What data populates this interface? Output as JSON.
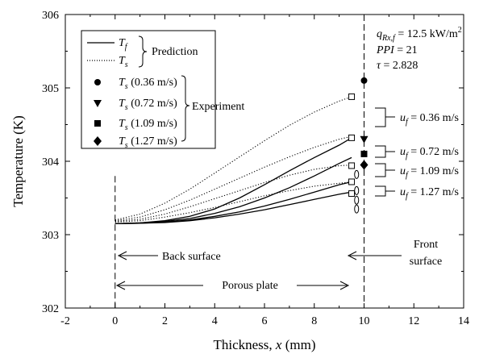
{
  "chart_data": {
    "type": "line",
    "xlabel_main": "Thickness, ",
    "xlabel_var": "x",
    "xlabel_unit": " (mm)",
    "ylabel": "Temperature (K)",
    "xlim": [
      -2,
      14
    ],
    "ylim": [
      302,
      306
    ],
    "xticks": [
      "-2",
      "0",
      "2",
      "4",
      "6",
      "8",
      "10",
      "12",
      "14"
    ],
    "yticks": [
      "302",
      "303",
      "304",
      "305",
      "306"
    ],
    "grid": false,
    "legend": {
      "placement": "top-left",
      "line_entries": [
        {
          "symbol": "T",
          "sub": "f",
          "style": "solid"
        },
        {
          "symbol": "T",
          "sub": "s",
          "style": "dotted"
        }
      ],
      "line_group_label": "Prediction",
      "marker_entries": [
        {
          "symbol": "T",
          "sub": "s",
          "suffix": " (0.36 m/s)",
          "marker": "circle"
        },
        {
          "symbol": "T",
          "sub": "s",
          "suffix": " (0.72 m/s)",
          "marker": "triangle-down"
        },
        {
          "symbol": "T",
          "sub": "s",
          "suffix": " (1.09 m/s)",
          "marker": "square"
        },
        {
          "symbol": "T",
          "sub": "s",
          "suffix": " (1.27 m/s)",
          "marker": "diamond"
        }
      ],
      "marker_group_label": "Experiment"
    },
    "params": {
      "q_sym": "q",
      "q_sub": "Rx,f",
      "q_val": " = 12.5 kW/m",
      "q_sup": "2",
      "ppi": "PPI",
      "ppi_val": " = 21",
      "tau": "τ",
      "tau_val": " = 2.828"
    },
    "velocity_labels": [
      {
        "sym": "u",
        "sub": "f",
        "text": " = 0.36 m/s"
      },
      {
        "sym": "u",
        "sub": "f",
        "text": " = 0.72 m/s"
      },
      {
        "sym": "u",
        "sub": "f",
        "text": " = 1.09 m/s"
      },
      {
        "sym": "u",
        "sub": "f",
        "text": " = 1.27 m/s"
      }
    ],
    "annotations": {
      "back_surface": "Back surface",
      "front_surface_1": "Front",
      "front_surface_2": "surface",
      "porous_plate": "Porous plate"
    },
    "vertical_lines_x": [
      0,
      10
    ],
    "series": [
      {
        "kind": "Tf",
        "velocity": 0.36,
        "style": "solid",
        "x": [
          0,
          1,
          2,
          3,
          4,
          5,
          6,
          7,
          8,
          9,
          9.5
        ],
        "y": [
          303.15,
          303.16,
          303.19,
          303.25,
          303.35,
          303.5,
          303.68,
          303.87,
          304.05,
          304.22,
          304.32
        ]
      },
      {
        "kind": "Ts",
        "velocity": 0.36,
        "style": "dotted",
        "x": [
          0,
          1,
          2,
          3,
          4,
          5,
          6,
          7,
          8,
          9,
          9.5
        ],
        "y": [
          303.2,
          303.28,
          303.43,
          303.62,
          303.84,
          304.06,
          304.28,
          304.49,
          304.67,
          304.82,
          304.88
        ]
      },
      {
        "kind": "Tf",
        "velocity": 0.72,
        "style": "solid",
        "x": [
          0,
          1,
          2,
          3,
          4,
          5,
          6,
          7,
          8,
          9,
          9.5
        ],
        "y": [
          303.15,
          303.16,
          303.18,
          303.22,
          303.29,
          303.38,
          303.5,
          303.64,
          303.8,
          303.97,
          304.05
        ]
      },
      {
        "kind": "Ts",
        "velocity": 0.72,
        "style": "dotted",
        "x": [
          0,
          1,
          2,
          3,
          4,
          5,
          6,
          7,
          8,
          9,
          9.5
        ],
        "y": [
          303.19,
          303.24,
          303.34,
          303.47,
          303.62,
          303.77,
          303.92,
          304.06,
          304.19,
          304.3,
          304.34
        ]
      },
      {
        "kind": "Tf",
        "velocity": 1.09,
        "style": "solid",
        "x": [
          0,
          1,
          2,
          3,
          4,
          5,
          6,
          7,
          8,
          9,
          9.5
        ],
        "y": [
          303.15,
          303.155,
          303.17,
          303.2,
          303.25,
          303.31,
          303.39,
          303.48,
          303.58,
          303.68,
          303.72
        ]
      },
      {
        "kind": "Ts",
        "velocity": 1.09,
        "style": "dotted",
        "x": [
          0,
          1,
          2,
          3,
          4,
          5,
          6,
          7,
          8,
          9,
          9.5
        ],
        "y": [
          303.18,
          303.21,
          303.28,
          303.38,
          303.49,
          303.6,
          303.71,
          303.81,
          303.89,
          303.94,
          303.95
        ]
      },
      {
        "kind": "Tf",
        "velocity": 1.27,
        "style": "solid",
        "x": [
          0,
          1,
          2,
          3,
          4,
          5,
          6,
          7,
          8,
          9,
          9.5
        ],
        "y": [
          303.15,
          303.155,
          303.165,
          303.19,
          303.23,
          303.28,
          303.34,
          303.41,
          303.48,
          303.55,
          303.58
        ]
      },
      {
        "kind": "Ts",
        "velocity": 1.27,
        "style": "dotted",
        "x": [
          0,
          1,
          2,
          3,
          4,
          5,
          6,
          7,
          8,
          9,
          9.5
        ],
        "y": [
          303.17,
          303.19,
          303.24,
          303.3,
          303.37,
          303.45,
          303.53,
          303.6,
          303.66,
          303.7,
          303.72
        ]
      }
    ],
    "open_squares": [
      {
        "x": 9.5,
        "y": 304.88
      },
      {
        "x": 9.5,
        "y": 304.32
      },
      {
        "x": 9.5,
        "y": 303.94
      },
      {
        "x": 9.5,
        "y": 303.72
      },
      {
        "x": 9.5,
        "y": 303.56
      }
    ],
    "experiment_points": [
      {
        "velocity": 0.36,
        "marker": "circle",
        "x": 10,
        "y": 305.1
      },
      {
        "velocity": 0.72,
        "marker": "triangle-down",
        "x": 10,
        "y": 304.3
      },
      {
        "velocity": 1.09,
        "marker": "square",
        "x": 10,
        "y": 304.1
      },
      {
        "velocity": 1.27,
        "marker": "diamond",
        "x": 10,
        "y": 303.95
      }
    ]
  }
}
